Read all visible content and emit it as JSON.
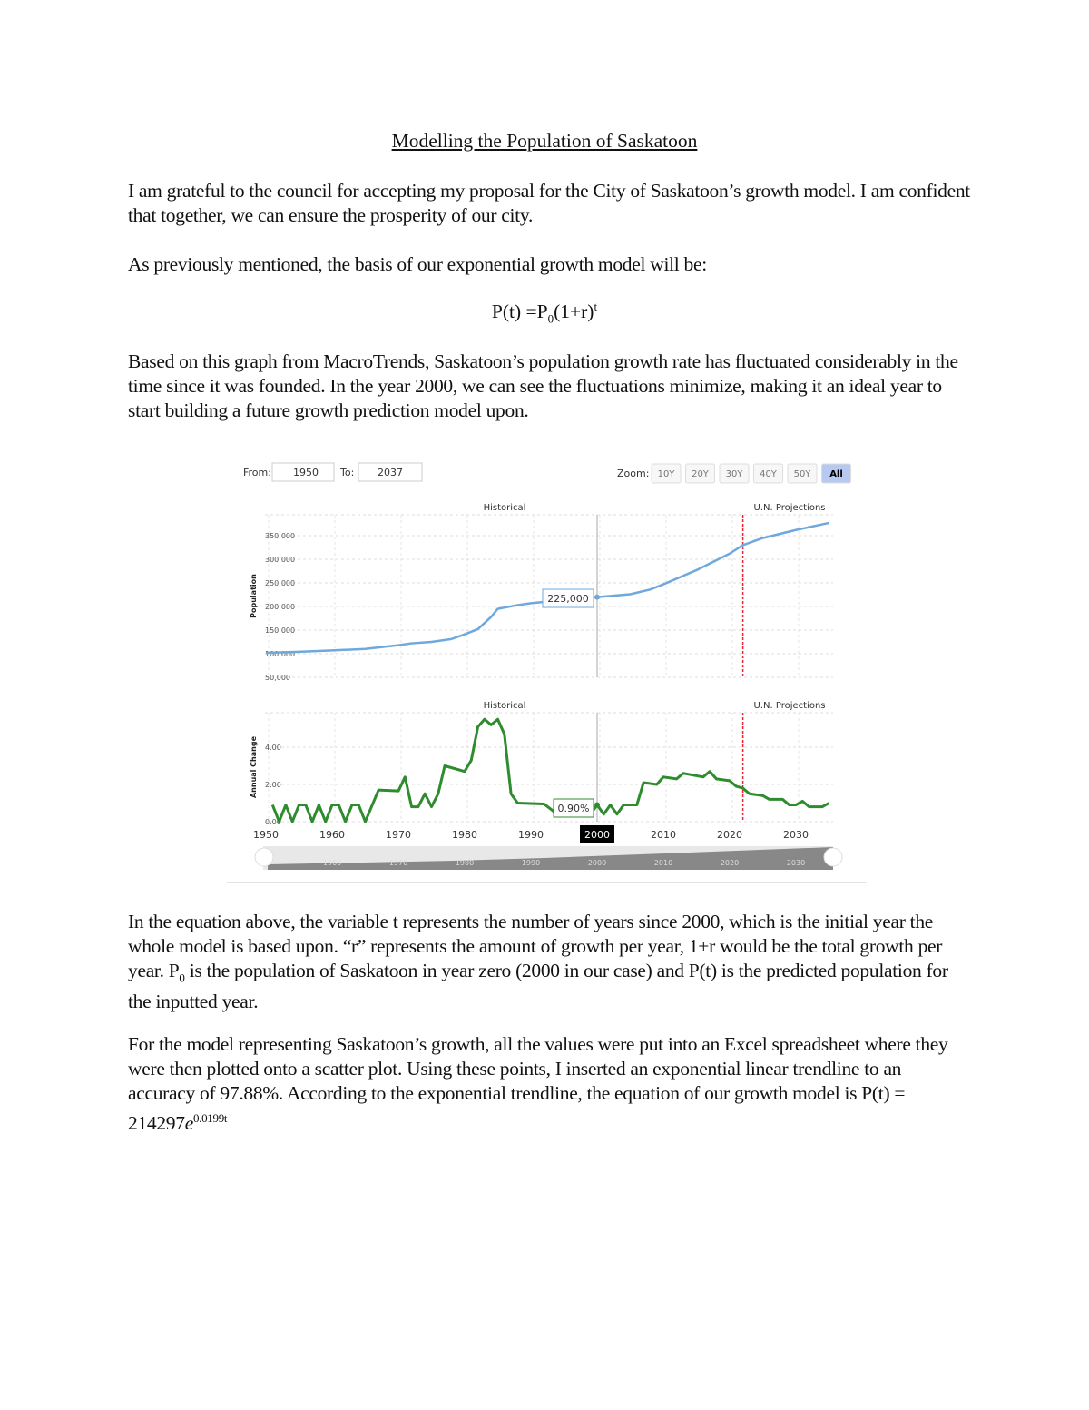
{
  "document": {
    "title": "Modelling the Population of Saskatoon",
    "para1": "I am grateful to the council for accepting my proposal for the City of Saskatoon’s growth model. I am confident that together, we can ensure the prosperity of our city.",
    "para2": "As previously mentioned, the basis of our exponential growth model will be:",
    "equation": {
      "lhs": "P(t) =P",
      "sub": "0",
      "mid": "(1+r)",
      "sup": "t"
    },
    "para3": "Based on this graph from MacroTrends, Saskatoon’s population growth rate has fluctuated considerably in the time since it was founded. In the year 2000, we can see the fluctuations minimize, making it an ideal year to start building a future growth prediction model upon.",
    "para4a": "In the equation above, the variable t represents the number of years since 2000, which is the initial year the whole model is based upon. “r” represents the amount of growth per year, 1+r would be the total growth per year. P",
    "para4sub": "0",
    "para4b": " is the population of Saskatoon in year zero (2000 in our case) and P(t) is the predicted population for the inputted year.",
    "para5a": "For the model representing Saskatoon’s growth, all the values were put into an Excel spreadsheet where they were then plotted onto a scatter plot. Using these points, I inserted an exponential linear trendline to an accuracy of 97.88%. According to the exponential trendline, the equation of our growth model is P(t) = 214297",
    "para5e": "e",
    "para5sup": "0.0199t"
  },
  "chart_controls": {
    "from_label": "From:",
    "from_value": "1950",
    "to_label": "To:",
    "to_value": "2037",
    "zoom_label": "Zoom:",
    "zoom_buttons": [
      "10Y",
      "20Y",
      "30Y",
      "40Y",
      "50Y",
      "All"
    ],
    "active_zoom": "All"
  },
  "chart_data": [
    {
      "type": "line",
      "ylabel": "Population",
      "section_labels": [
        "Historical",
        "U.N. Projections"
      ],
      "yticks": [
        "350,000",
        "300,000",
        "250,000",
        "200,000",
        "150,000",
        "100,000",
        "50,000"
      ],
      "ylim": [
        50000,
        380000
      ],
      "xlim": [
        1950,
        2037
      ],
      "tooltip": "225,000",
      "marker_year": 2000,
      "projection_start": 2022,
      "color": "#6fa8dc",
      "x": [
        1950,
        1955,
        1960,
        1965,
        1970,
        1972,
        1975,
        1978,
        1980,
        1982,
        1984,
        1985,
        1988,
        1990,
        1995,
        2000,
        2005,
        2008,
        2010,
        2015,
        2020,
        2022,
        2025,
        2030,
        2035
      ],
      "y": [
        102000,
        104000,
        107000,
        110000,
        118000,
        122000,
        125000,
        131000,
        141000,
        152000,
        178000,
        195000,
        203000,
        207000,
        214000,
        220000,
        226000,
        236000,
        247000,
        277000,
        312000,
        330000,
        345000,
        362000,
        377000
      ]
    },
    {
      "type": "line",
      "ylabel": "Annual Change",
      "section_labels": [
        "Historical",
        "U.N. Projections"
      ],
      "yticks": [
        "4.00",
        "2.00",
        "0.00"
      ],
      "xticks": [
        "1950",
        "1960",
        "1970",
        "1980",
        "1990",
        "2000",
        "2010",
        "2020",
        "2030"
      ],
      "ylim": [
        0,
        5.8
      ],
      "xlim": [
        1950,
        2037
      ],
      "tooltip": "0.90%",
      "marker_year": 2000,
      "projection_start": 2022,
      "color": "#2e8b2e",
      "x": [
        1951,
        1952,
        1953,
        1954,
        1955,
        1956,
        1957,
        1958,
        1959,
        1960,
        1961,
        1962,
        1963,
        1964,
        1965,
        1967,
        1970,
        1971,
        1972,
        1973,
        1974,
        1975,
        1976,
        1977,
        1980,
        1981,
        1982,
        1983,
        1984,
        1985,
        1986,
        1987,
        1988,
        1992,
        1994,
        1999,
        2000,
        2001,
        2002,
        2003,
        2004,
        2006,
        2007,
        2009,
        2010,
        2012,
        2013,
        2016,
        2017,
        2018,
        2020,
        2021,
        2022,
        2023,
        2025,
        2026,
        2028,
        2029,
        2030,
        2031,
        2032,
        2034,
        2035
      ],
      "y": [
        0.9,
        0,
        0.9,
        0,
        0.9,
        0.9,
        0,
        0.9,
        0,
        0.9,
        0.9,
        0,
        0.9,
        0.9,
        0,
        1.7,
        1.65,
        2.4,
        0.8,
        0.8,
        1.5,
        0.8,
        1.5,
        3.0,
        2.7,
        3.3,
        5.1,
        5.5,
        5.2,
        5.5,
        4.7,
        1.5,
        1.0,
        0.95,
        0.4,
        0.4,
        0.9,
        0.4,
        0.9,
        0.4,
        0.9,
        0.9,
        2.1,
        2.0,
        2.4,
        2.3,
        2.6,
        2.4,
        2.7,
        2.3,
        2.2,
        1.9,
        1.8,
        1.5,
        1.4,
        1.2,
        1.2,
        0.9,
        0.9,
        1.1,
        0.8,
        0.8,
        1.0
      ]
    }
  ],
  "navigator": {
    "labels": [
      "1960",
      "1970",
      "1980",
      "1990",
      "2000",
      "2010",
      "2020",
      "2030"
    ]
  }
}
